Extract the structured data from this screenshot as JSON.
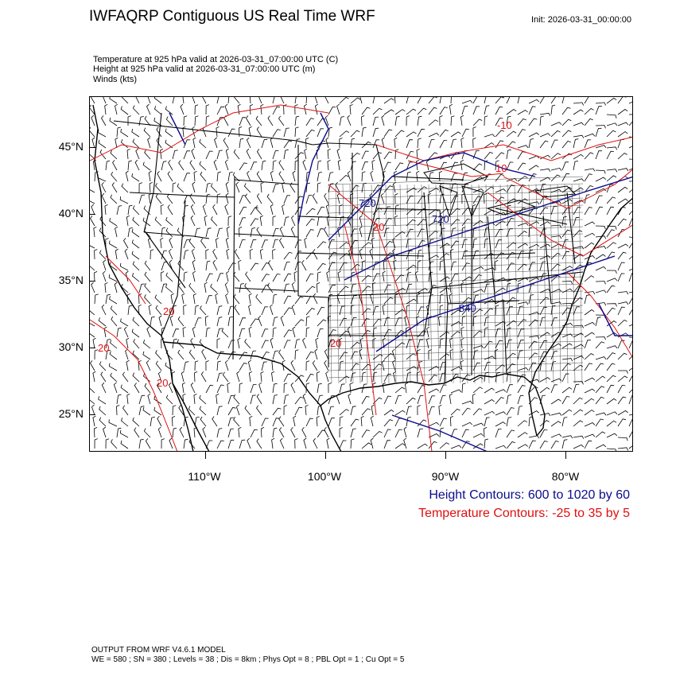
{
  "header": {
    "title": "IWFAQRP Contiguous US Real Time WRF",
    "init": "Init: 2026-03-31_00:00:00"
  },
  "fields": [
    "Temperature at 925 hPa valid at 2026-03-31_07:00:00 UTC   (C)",
    "Height at 925 hPa valid at 2026-03-31_07:00:00 UTC   (m)",
    "Winds   (kts)"
  ],
  "map": {
    "lat_labels": [
      "45°N",
      "40°N",
      "35°N",
      "30°N",
      "25°N"
    ],
    "lon_labels": [
      "110°W",
      "100°W",
      "90°W",
      "80°W"
    ],
    "height_contour_labels": [
      "720",
      "720",
      "840"
    ],
    "temperature_contour_labels": [
      "-10",
      "10",
      "20",
      "20",
      "20",
      "20",
      "20"
    ],
    "colors": {
      "height": "#0c0c8c",
      "temperature": "#e01010",
      "borders": "#000000",
      "barbs": "#000000"
    }
  },
  "legend": {
    "height": "Height Contours: 600 to 1020 by 60",
    "temperature": "Temperature Contours: -25 to 35 by 5"
  },
  "footer": {
    "line1": "OUTPUT FROM WRF V4.6.1 MODEL",
    "line2": "WE = 580 ; SN = 380 ; Levels = 38 ; Dis = 8km ; Phys Opt = 8 ; PBL Opt = 1 ; Cu Opt = 5"
  }
}
